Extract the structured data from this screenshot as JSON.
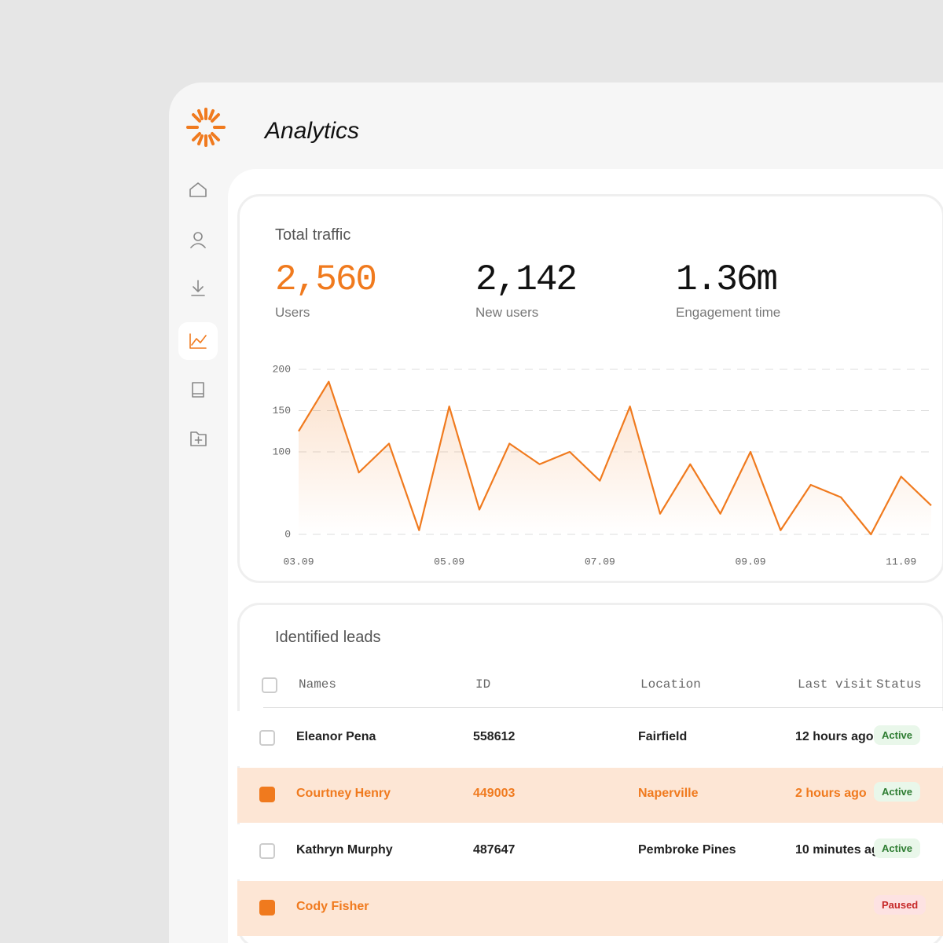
{
  "header": {
    "title": "Analytics"
  },
  "traffic": {
    "title": "Total traffic",
    "stats": [
      {
        "value": "2,560",
        "label": "Users",
        "color": "#f07a1e"
      },
      {
        "value": "2,142",
        "label": "New users",
        "color": "#111111"
      },
      {
        "value": "1.36m",
        "label": "Engagement time",
        "color": "#111111"
      }
    ],
    "chart_data": {
      "type": "line",
      "categories": [
        "03.09",
        null,
        null,
        null,
        null,
        "05.09",
        null,
        null,
        null,
        null,
        "07.09",
        null,
        null,
        null,
        null,
        "09.09",
        null,
        null,
        null,
        null,
        "11.09",
        null
      ],
      "values": [
        125,
        185,
        75,
        110,
        5,
        155,
        30,
        110,
        85,
        100,
        65,
        155,
        25,
        85,
        25,
        100,
        5,
        60,
        45,
        0,
        70,
        35
      ],
      "color": "#f07a1e",
      "ylim": [
        0,
        200
      ],
      "yticks": [
        0,
        100,
        150,
        200
      ],
      "grid": true
    }
  },
  "leads": {
    "title": "Identified leads",
    "columns": [
      "Names",
      "ID",
      "Location",
      "Last visit",
      "Status"
    ],
    "rows": [
      {
        "name": "Eleanor Pena",
        "id": "558612",
        "location": "Fairfield",
        "last_visit": "12 hours ago",
        "status": "Active",
        "selected": false
      },
      {
        "name": "Courtney Henry",
        "id": "449003",
        "location": "Naperville",
        "last_visit": "2 hours ago",
        "status": "Active",
        "selected": true
      },
      {
        "name": "Kathryn Murphy",
        "id": "487647",
        "location": "Pembroke Pines",
        "last_visit": "10 minutes ago",
        "status": "Active",
        "selected": false
      },
      {
        "name": "Cody Fisher",
        "status": "Paused",
        "selected": true
      }
    ]
  }
}
